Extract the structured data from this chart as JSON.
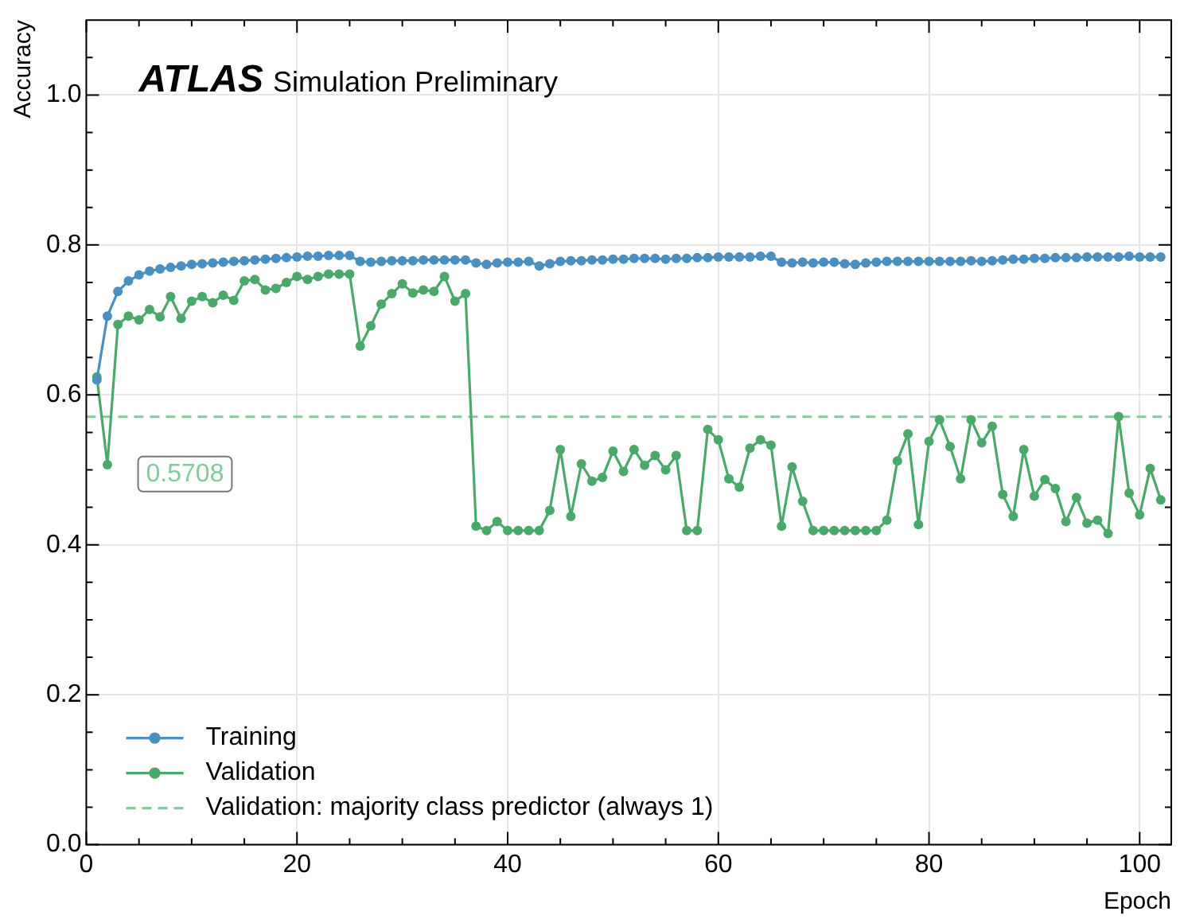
{
  "chart_data": {
    "type": "line",
    "title": "ATLAS",
    "subtitle": "Simulation Preliminary",
    "xlabel": "Epoch",
    "ylabel": "Accuracy",
    "x": [
      1,
      2,
      3,
      4,
      5,
      6,
      7,
      8,
      9,
      10,
      11,
      12,
      13,
      14,
      15,
      16,
      17,
      18,
      19,
      20,
      21,
      22,
      23,
      24,
      25,
      26,
      27,
      28,
      29,
      30,
      31,
      32,
      33,
      34,
      35,
      36,
      37,
      38,
      39,
      40,
      41,
      42,
      43,
      44,
      45,
      46,
      47,
      48,
      49,
      50,
      51,
      52,
      53,
      54,
      55,
      56,
      57,
      58,
      59,
      60,
      61,
      62,
      63,
      64,
      65,
      66,
      67,
      68,
      69,
      70,
      71,
      72,
      73,
      74,
      75,
      76,
      77,
      78,
      79,
      80,
      81,
      82,
      83,
      84,
      85,
      86,
      87,
      88,
      89,
      90,
      91,
      92,
      93,
      94,
      95,
      96,
      97,
      98,
      99,
      100,
      101,
      102
    ],
    "series": [
      {
        "name": "Training",
        "color": "#4a8fc0",
        "values": [
          0.62,
          0.705,
          0.738,
          0.752,
          0.76,
          0.765,
          0.768,
          0.77,
          0.772,
          0.774,
          0.775,
          0.776,
          0.777,
          0.778,
          0.779,
          0.78,
          0.781,
          0.782,
          0.783,
          0.784,
          0.785,
          0.785,
          0.786,
          0.786,
          0.786,
          0.778,
          0.777,
          0.778,
          0.779,
          0.779,
          0.779,
          0.78,
          0.78,
          0.78,
          0.78,
          0.78,
          0.776,
          0.774,
          0.776,
          0.777,
          0.777,
          0.778,
          0.772,
          0.775,
          0.778,
          0.779,
          0.779,
          0.78,
          0.78,
          0.781,
          0.781,
          0.782,
          0.782,
          0.782,
          0.781,
          0.782,
          0.782,
          0.783,
          0.783,
          0.784,
          0.784,
          0.784,
          0.784,
          0.785,
          0.785,
          0.777,
          0.776,
          0.777,
          0.776,
          0.777,
          0.777,
          0.775,
          0.774,
          0.776,
          0.777,
          0.778,
          0.778,
          0.778,
          0.778,
          0.778,
          0.778,
          0.778,
          0.778,
          0.779,
          0.778,
          0.779,
          0.78,
          0.781,
          0.781,
          0.782,
          0.782,
          0.783,
          0.783,
          0.783,
          0.784,
          0.784,
          0.784,
          0.784,
          0.785,
          0.784,
          0.784,
          0.784
        ]
      },
      {
        "name": "Validation",
        "color": "#4aa86a",
        "values": [
          0.624,
          0.507,
          0.694,
          0.705,
          0.7,
          0.714,
          0.704,
          0.731,
          0.702,
          0.725,
          0.731,
          0.723,
          0.733,
          0.726,
          0.752,
          0.754,
          0.74,
          0.742,
          0.75,
          0.758,
          0.754,
          0.758,
          0.761,
          0.761,
          0.761,
          0.665,
          0.692,
          0.721,
          0.735,
          0.748,
          0.736,
          0.74,
          0.738,
          0.758,
          0.725,
          0.735,
          0.425,
          0.419,
          0.431,
          0.419,
          0.419,
          0.419,
          0.419,
          0.446,
          0.527,
          0.438,
          0.508,
          0.485,
          0.49,
          0.525,
          0.498,
          0.527,
          0.506,
          0.519,
          0.5,
          0.519,
          0.419,
          0.419,
          0.554,
          0.54,
          0.488,
          0.477,
          0.529,
          0.54,
          0.533,
          0.425,
          0.504,
          0.458,
          0.419,
          0.419,
          0.419,
          0.419,
          0.419,
          0.419,
          0.419,
          0.433,
          0.512,
          0.548,
          0.427,
          0.538,
          0.567,
          0.531,
          0.488,
          0.567,
          0.536,
          0.558,
          0.467,
          0.438,
          0.527,
          0.465,
          0.487,
          0.475,
          0.431,
          0.463,
          0.429,
          0.433,
          0.415,
          0.571,
          0.469,
          0.44,
          0.502,
          0.46
        ]
      }
    ],
    "ref_lines": [
      {
        "axis": "y",
        "value": 0.5708,
        "label": "Validation: majority class predictor (always 1)",
        "color": "#7fcb9c",
        "line_style": "dashed"
      }
    ],
    "annotations": [
      "0.5708"
    ],
    "xlim": [
      0,
      103
    ],
    "xticks": [
      0,
      {
        "value": 5,
        "label": null
      },
      {
        "value": 10,
        "label": null
      },
      {
        "value": 15,
        "label": null
      },
      20,
      {
        "value": 25,
        "label": null
      },
      {
        "value": 30,
        "label": null
      },
      {
        "value": 35,
        "label": null
      },
      40,
      {
        "value": 45,
        "label": null
      },
      {
        "value": 50,
        "label": null
      },
      {
        "value": 55,
        "label": null
      },
      60,
      {
        "value": 65,
        "label": null
      },
      {
        "value": 70,
        "label": null
      },
      {
        "value": 75,
        "label": null
      },
      80,
      {
        "value": 85,
        "label": null
      },
      {
        "value": 90,
        "label": null
      },
      {
        "value": 95,
        "label": null
      },
      100
    ],
    "ylim": [
      0,
      1.1
    ],
    "yticks": [
      {
        "value": 0,
        "label": "0.0"
      },
      {
        "value": 0.05,
        "label": null
      },
      {
        "value": 0.1,
        "label": null
      },
      {
        "value": 0.15,
        "label": null
      },
      0.2,
      {
        "value": 0.25,
        "label": null
      },
      {
        "value": 0.3,
        "label": null
      },
      {
        "value": 0.35,
        "label": null
      },
      0.4,
      {
        "value": 0.45,
        "label": null
      },
      {
        "value": 0.5,
        "label": null
      },
      {
        "value": 0.55,
        "label": null
      },
      0.6,
      {
        "value": 0.65,
        "label": null
      },
      {
        "value": 0.7,
        "label": null
      },
      {
        "value": 0.75,
        "label": null
      },
      0.8,
      {
        "value": 0.85,
        "label": null
      },
      {
        "value": 0.9,
        "label": null
      },
      {
        "value": 0.95,
        "label": null
      },
      {
        "value": 1,
        "label": "1.0"
      },
      {
        "value": 1.05,
        "label": null
      }
    ],
    "grid": true,
    "legend": "bottom left",
    "marker": "circle",
    "line_style": "solid"
  }
}
